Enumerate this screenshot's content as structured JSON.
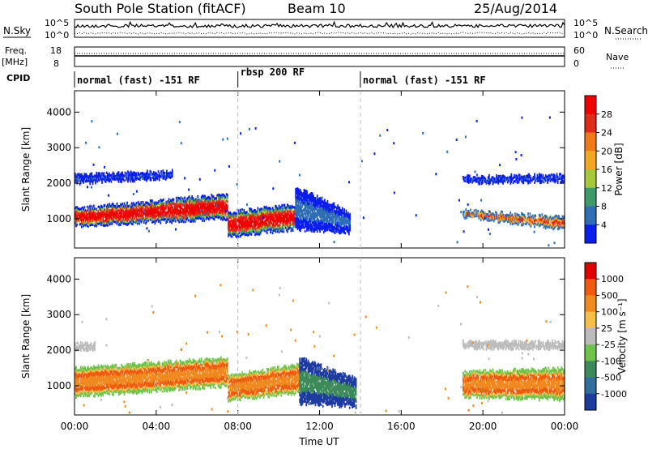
{
  "header": {
    "station": "South Pole Station (fitACF)",
    "beam": "Beam 10",
    "date": "25/Aug/2014"
  },
  "noise_panel": {
    "left_label": "N.Sky",
    "left_ticks": [
      "10^5",
      "10^0"
    ],
    "right_label": "N.Search",
    "right_ticks": [
      "10^5",
      "10^0"
    ]
  },
  "freq_panel": {
    "left_label_line1": "Freq.",
    "left_label_line2": "[MHz]",
    "left_ticks": [
      "18",
      "8"
    ],
    "right_label": "Nave",
    "right_ticks": [
      "60",
      "0"
    ]
  },
  "cpid": {
    "label": "CPID",
    "segments": [
      {
        "start_hour": 0,
        "end_hour": 8,
        "text": "normal (fast) -151 RF"
      },
      {
        "start_hour": 8,
        "end_hour": 14,
        "text": "rbsp 200 RF"
      },
      {
        "start_hour": 14,
        "end_hour": 24,
        "text": "normal (fast) -151 RF"
      }
    ]
  },
  "chart_data": [
    {
      "type": "heatmap",
      "panel": "power",
      "ylabel": "Slant Range [km]",
      "xlim_hours": [
        0,
        24
      ],
      "ylim": [
        180,
        4600
      ],
      "yticks": [
        "1000",
        "2000",
        "3000",
        "4000"
      ],
      "colorbar_label": "Power [dB]",
      "colorbar_ticks": [
        "4",
        "8",
        "12",
        "16",
        "20",
        "24",
        "28"
      ],
      "colorbar_colors": [
        "#0a1ef0",
        "#2f6eb4",
        "#3d9a6a",
        "#a6c83a",
        "#f5a623",
        "#f07a1a",
        "#e02a1a",
        "#f00000"
      ],
      "echo_regions": [
        {
          "x0": 0.0,
          "x1": 7.5,
          "y0_start": 800,
          "y1_start": 1300,
          "y0_end": 1000,
          "y1_end": 1700,
          "level": "high"
        },
        {
          "x0": 7.5,
          "x1": 10.8,
          "y0_start": 500,
          "y1_start": 1200,
          "y0_end": 700,
          "y1_end": 1400,
          "level": "high"
        },
        {
          "x0": 0.0,
          "x1": 4.8,
          "y0_start": 2000,
          "y1_start": 2250,
          "y0_end": 2150,
          "y1_end": 2350,
          "level": "low"
        },
        {
          "x0": 19.0,
          "x1": 24.0,
          "y0_start": 2000,
          "y1_start": 2200,
          "y0_end": 2050,
          "y1_end": 2250,
          "level": "low"
        },
        {
          "x0": 19.0,
          "x1": 24.0,
          "y0_start": 1050,
          "y1_start": 1250,
          "y0_end": 700,
          "y1_end": 1050,
          "level": "mid"
        },
        {
          "x0": 10.8,
          "x1": 13.5,
          "y0_start": 700,
          "y1_start": 1900,
          "y0_end": 600,
          "y1_end": 1200,
          "level": "low"
        }
      ]
    },
    {
      "type": "heatmap",
      "panel": "velocity",
      "ylabel": "Slant Range [km]",
      "xlabel": "Time UT",
      "xlim_hours": [
        0,
        24
      ],
      "ylim": [
        180,
        4600
      ],
      "yticks": [
        "1000",
        "2000",
        "3000",
        "4000"
      ],
      "xticks": [
        "00:00",
        "04:00",
        "08:00",
        "12:00",
        "16:00",
        "20:00",
        "00:00"
      ],
      "colorbar_label": "Velocity [m s⁻¹]",
      "colorbar_ticks": [
        "1000",
        "500",
        "100",
        "25",
        "-25",
        "-100",
        "-500",
        "-1000"
      ],
      "colorbar_colors": [
        "#1e3ca0",
        "#2f6e9a",
        "#3d8a5a",
        "#6fc24a",
        "#bcbcbc",
        "#f5c04a",
        "#f08a20",
        "#f05a10",
        "#e00000"
      ],
      "echo_regions": [
        {
          "x0": 0.0,
          "x1": 7.5,
          "y0_start": 700,
          "y1_start": 1500,
          "y0_end": 1000,
          "y1_end": 1800,
          "level": "neg"
        },
        {
          "x0": 7.5,
          "x1": 11.0,
          "y0_start": 600,
          "y1_start": 1300,
          "y0_end": 800,
          "y1_end": 1600,
          "level": "neg"
        },
        {
          "x0": 0.0,
          "x1": 1.0,
          "y0_start": 2000,
          "y1_start": 2200,
          "y0_end": 2000,
          "y1_end": 2200,
          "level": "zero"
        },
        {
          "x0": 19.0,
          "x1": 24.0,
          "y0_start": 2050,
          "y1_start": 2250,
          "y0_end": 2050,
          "y1_end": 2250,
          "level": "zero"
        },
        {
          "x0": 19.0,
          "x1": 24.0,
          "y0_start": 700,
          "y1_start": 1400,
          "y0_end": 600,
          "y1_end": 1500,
          "level": "neg"
        },
        {
          "x0": 11.0,
          "x1": 13.8,
          "y0_start": 500,
          "y1_start": 1800,
          "y0_end": 400,
          "y1_end": 1200,
          "level": "pos"
        }
      ]
    }
  ]
}
